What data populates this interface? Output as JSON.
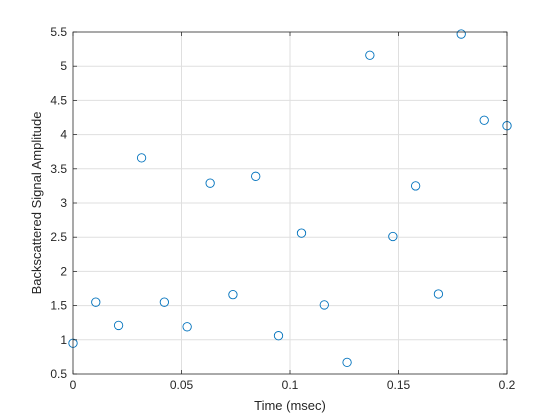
{
  "chart_data": {
    "type": "scatter",
    "title": "",
    "xlabel": "Time (msec)",
    "ylabel": "Backscattered Signal Amplitude",
    "xlim": [
      0,
      0.2
    ],
    "ylim": [
      0.5,
      5.5
    ],
    "x_ticks": [
      0,
      0.05,
      0.1,
      0.15,
      0.2
    ],
    "x_tick_labels": [
      "0",
      "0.05",
      "0.1",
      "0.15",
      "0.2"
    ],
    "y_ticks": [
      0.5,
      1,
      1.5,
      2,
      2.5,
      3,
      3.5,
      4,
      4.5,
      5,
      5.5
    ],
    "y_tick_labels": [
      "0.5",
      "1",
      "1.5",
      "2",
      "2.5",
      "3",
      "3.5",
      "4",
      "4.5",
      "5",
      "5.5"
    ],
    "grid": true,
    "marker": "open-circle",
    "color": "#0072bd",
    "series": [
      {
        "x": [
          0,
          0.0105,
          0.021,
          0.0316,
          0.0421,
          0.0526,
          0.0632,
          0.0737,
          0.0842,
          0.0947,
          0.1053,
          0.1158,
          0.1263,
          0.1368,
          0.1474,
          0.1579,
          0.1684,
          0.1789,
          0.1895,
          0.2
        ],
        "y": [
          0.95,
          1.55,
          1.21,
          3.66,
          1.55,
          1.19,
          3.29,
          1.66,
          3.39,
          1.06,
          2.56,
          1.51,
          0.67,
          5.16,
          2.51,
          3.25,
          1.67,
          5.47,
          4.21,
          4.13
        ]
      }
    ]
  }
}
